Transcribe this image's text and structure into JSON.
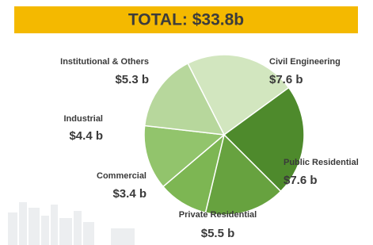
{
  "chart_data": {
    "type": "pie",
    "title": "TOTAL: $33.8b",
    "categories": [
      "Civil Engineering",
      "Public Residential",
      "Private Residential",
      "Commercial",
      "Industrial",
      "Institutional & Others"
    ],
    "values": [
      7.6,
      7.6,
      5.5,
      3.4,
      4.4,
      5.3
    ],
    "value_labels": [
      "$7.6 b",
      "$7.6 b",
      "$5.5 b",
      "$3.4 b",
      "$4.4 b",
      "$5.3 b"
    ],
    "colors": [
      "#d2e6bf",
      "#4e8a2c",
      "#67a23f",
      "#7db653",
      "#92c46c",
      "#b7d79c"
    ]
  }
}
